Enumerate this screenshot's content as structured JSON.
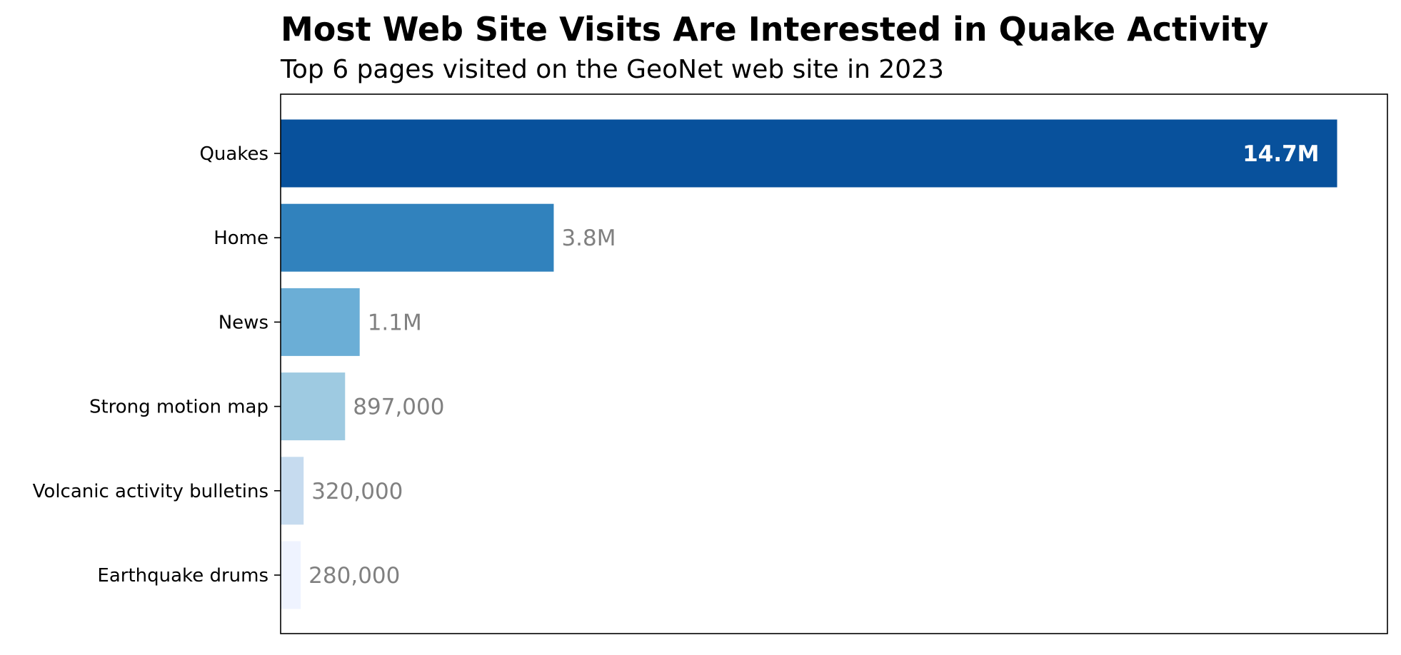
{
  "chart_data": {
    "type": "bar",
    "orientation": "horizontal",
    "title": "Most Web Site Visits Are Interested in Quake Activity",
    "subtitle": "Top 6 pages visited on the GeoNet web site in 2023",
    "xlabel": "",
    "ylabel": "",
    "xlim": [
      0,
      15400000
    ],
    "grid": false,
    "x_ticks_shown": false,
    "categories": [
      "Quakes",
      "Home",
      "News",
      "Strong motion map",
      "Volcanic activity bulletins",
      "Earthquake drums"
    ],
    "values": [
      14700000,
      3800000,
      1100000,
      897000,
      320000,
      280000
    ],
    "value_labels": [
      "14.7M",
      "3.8M",
      "1.1M",
      "897,000",
      "320,000",
      "280,000"
    ],
    "colors": [
      "#08519c",
      "#3182bd",
      "#6baed6",
      "#9ecae1",
      "#c6dbef",
      "#eff3ff"
    ],
    "label_colors": {
      "inside": "#ffffff",
      "outside": "#808080"
    }
  }
}
